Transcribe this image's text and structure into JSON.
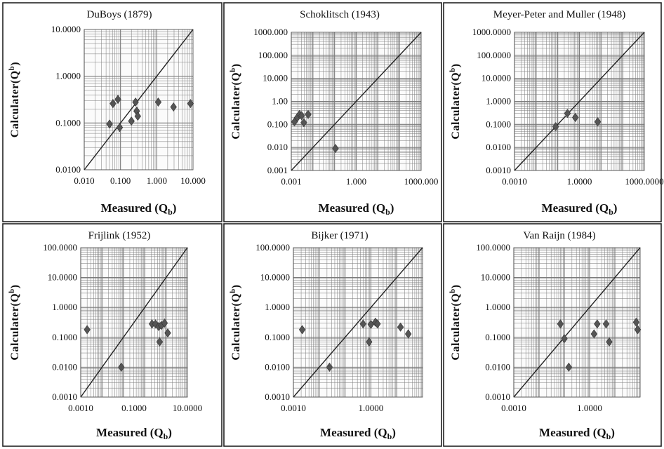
{
  "figure": {
    "line_color": "#222222",
    "marker_color": "#555555",
    "grid_color": "#7a7a7a"
  },
  "chart_data": [
    {
      "type": "scatter",
      "title": "DuBoys (1879)",
      "xlabel": "Measured (Qb)",
      "ylabel": "Calculater(Qb)",
      "scale": "log",
      "xlim": [
        0.01,
        10
      ],
      "ylim": [
        0.01,
        10
      ],
      "xticks": [
        "0.010",
        "0.100",
        "1.000",
        "10.000"
      ],
      "yticks": [
        "0.0100",
        "0.1000",
        "1.0000",
        "10.0000"
      ],
      "line": "y = x",
      "points": [
        {
          "x": 0.05,
          "y": 0.095
        },
        {
          "x": 0.062,
          "y": 0.26
        },
        {
          "x": 0.085,
          "y": 0.32
        },
        {
          "x": 0.095,
          "y": 0.08
        },
        {
          "x": 0.2,
          "y": 0.11
        },
        {
          "x": 0.26,
          "y": 0.28
        },
        {
          "x": 0.28,
          "y": 0.18
        },
        {
          "x": 0.3,
          "y": 0.14
        },
        {
          "x": 1.1,
          "y": 0.28
        },
        {
          "x": 2.9,
          "y": 0.22
        },
        {
          "x": 8.5,
          "y": 0.26
        }
      ]
    },
    {
      "type": "scatter",
      "title": "Schoklitsch (1943)",
      "xlabel": "Measured (Qb)",
      "ylabel": "Calculater(Qb)",
      "scale": "log",
      "xlim": [
        0.001,
        1000
      ],
      "ylim": [
        0.001,
        1000
      ],
      "xticks": [
        "0.001",
        "1.000",
        "1000.000"
      ],
      "yticks": [
        "0.001",
        "0.010",
        "0.100",
        "1.00",
        "10.000",
        "100.000",
        "1000.000"
      ],
      "line": "y = x",
      "points": [
        {
          "x": 0.0014,
          "y": 0.13
        },
        {
          "x": 0.0019,
          "y": 0.2
        },
        {
          "x": 0.0024,
          "y": 0.27
        },
        {
          "x": 0.003,
          "y": 0.24
        },
        {
          "x": 0.0038,
          "y": 0.12
        },
        {
          "x": 0.006,
          "y": 0.27
        },
        {
          "x": 0.11,
          "y": 0.009
        }
      ]
    },
    {
      "type": "scatter",
      "title": "Meyer-Peter and Muller  (1948)",
      "xlabel": "Measured (Qb)",
      "ylabel": "Calculater(Qb)",
      "scale": "log",
      "xlim": [
        0.001,
        1000
      ],
      "ylim": [
        0.001,
        1000
      ],
      "xticks": [
        "0.0010",
        "1.0000",
        "1000.0000"
      ],
      "yticks": [
        "0.0010",
        "0.0100",
        "0.1000",
        "1.0000",
        "10.0000",
        "100.0000",
        "1000.0000"
      ],
      "line": "y = x",
      "points": [
        {
          "x": 0.08,
          "y": 0.08
        },
        {
          "x": 0.28,
          "y": 0.3
        },
        {
          "x": 0.65,
          "y": 0.2
        },
        {
          "x": 7,
          "y": 0.13
        }
      ]
    },
    {
      "type": "scatter",
      "title": "Frijlink  (1952)",
      "xlabel": "Measured (Qb)",
      "ylabel": "Calculater(Qb)",
      "scale": "log",
      "xlim": [
        0.001,
        100
      ],
      "ylim": [
        0.001,
        100
      ],
      "xticks": [
        "0.0010",
        "0.1000",
        "10.0000"
      ],
      "yticks": [
        "0.0010",
        "0.0100",
        "0.1000",
        "1.0000",
        "10.0000",
        "100.0000"
      ],
      "line": "y = x",
      "points": [
        {
          "x": 0.002,
          "y": 0.18
        },
        {
          "x": 0.08,
          "y": 0.01
        },
        {
          "x": 2.2,
          "y": 0.28
        },
        {
          "x": 3.2,
          "y": 0.28
        },
        {
          "x": 4.5,
          "y": 0.23
        },
        {
          "x": 5,
          "y": 0.07
        },
        {
          "x": 6,
          "y": 0.25
        },
        {
          "x": 8.5,
          "y": 0.3
        },
        {
          "x": 12,
          "y": 0.14
        }
      ]
    },
    {
      "type": "scatter",
      "title": "Bijker  (1971)",
      "xlabel": "Measured (Qb)",
      "ylabel": "Calculater(Qb)",
      "scale": "log",
      "xlim": [
        0.001,
        100
      ],
      "ylim": [
        0.001,
        100
      ],
      "xticks": [
        "0.0010",
        "1.0000"
      ],
      "yticks": [
        "0.0010",
        "0.0100",
        "0.1000",
        "1.0000",
        "10.0000",
        "100.0000"
      ],
      "line": "y = x",
      "points": [
        {
          "x": 0.0022,
          "y": 0.18
        },
        {
          "x": 0.025,
          "y": 0.01
        },
        {
          "x": 0.5,
          "y": 0.28
        },
        {
          "x": 0.85,
          "y": 0.07
        },
        {
          "x": 1.0,
          "y": 0.27
        },
        {
          "x": 1.5,
          "y": 0.32
        },
        {
          "x": 1.8,
          "y": 0.28
        },
        {
          "x": 14,
          "y": 0.22
        },
        {
          "x": 28,
          "y": 0.13
        }
      ]
    },
    {
      "type": "scatter",
      "title": "Van Raijn  (1984)",
      "xlabel": "Measured (Qb)",
      "ylabel": "Calculater(Qb)",
      "scale": "log",
      "xlim": [
        0.001,
        100
      ],
      "ylim": [
        0.001,
        100
      ],
      "xticks": [
        "0.0010",
        "1.0000"
      ],
      "yticks": [
        "0.0010",
        "0.0100",
        "0.1000",
        "1.0000",
        "10.0000",
        "100.0000"
      ],
      "line": "y = x",
      "points": [
        {
          "x": 0.07,
          "y": 0.28
        },
        {
          "x": 0.1,
          "y": 0.09
        },
        {
          "x": 0.15,
          "y": 0.01
        },
        {
          "x": 1.5,
          "y": 0.13
        },
        {
          "x": 2.0,
          "y": 0.28
        },
        {
          "x": 4.5,
          "y": 0.28
        },
        {
          "x": 6,
          "y": 0.07
        },
        {
          "x": 70,
          "y": 0.32
        },
        {
          "x": 80,
          "y": 0.18
        }
      ]
    }
  ]
}
